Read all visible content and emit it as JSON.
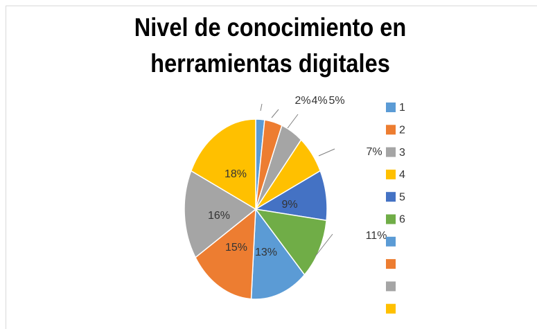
{
  "chart_data": {
    "type": "pie",
    "title": "Nivel de conocimiento en herramientas digitales",
    "categories": [
      "1",
      "2",
      "3",
      "4",
      "5",
      "6",
      null,
      null,
      null,
      null
    ],
    "values": [
      2,
      4,
      5,
      7,
      9,
      11,
      13,
      15,
      16,
      18
    ],
    "value_labels": [
      "2%",
      "4%",
      "5%",
      "7%",
      "9%",
      "11%",
      "13%",
      "15%",
      "16%",
      "18%"
    ],
    "colors": [
      "#5b9bd5",
      "#ed7d31",
      "#a5a5a5",
      "#ffc000",
      "#4472c4",
      "#70ad47",
      "#5b9bd5",
      "#ed7d31",
      "#a5a5a5",
      "#ffc000"
    ],
    "legend": "right"
  }
}
